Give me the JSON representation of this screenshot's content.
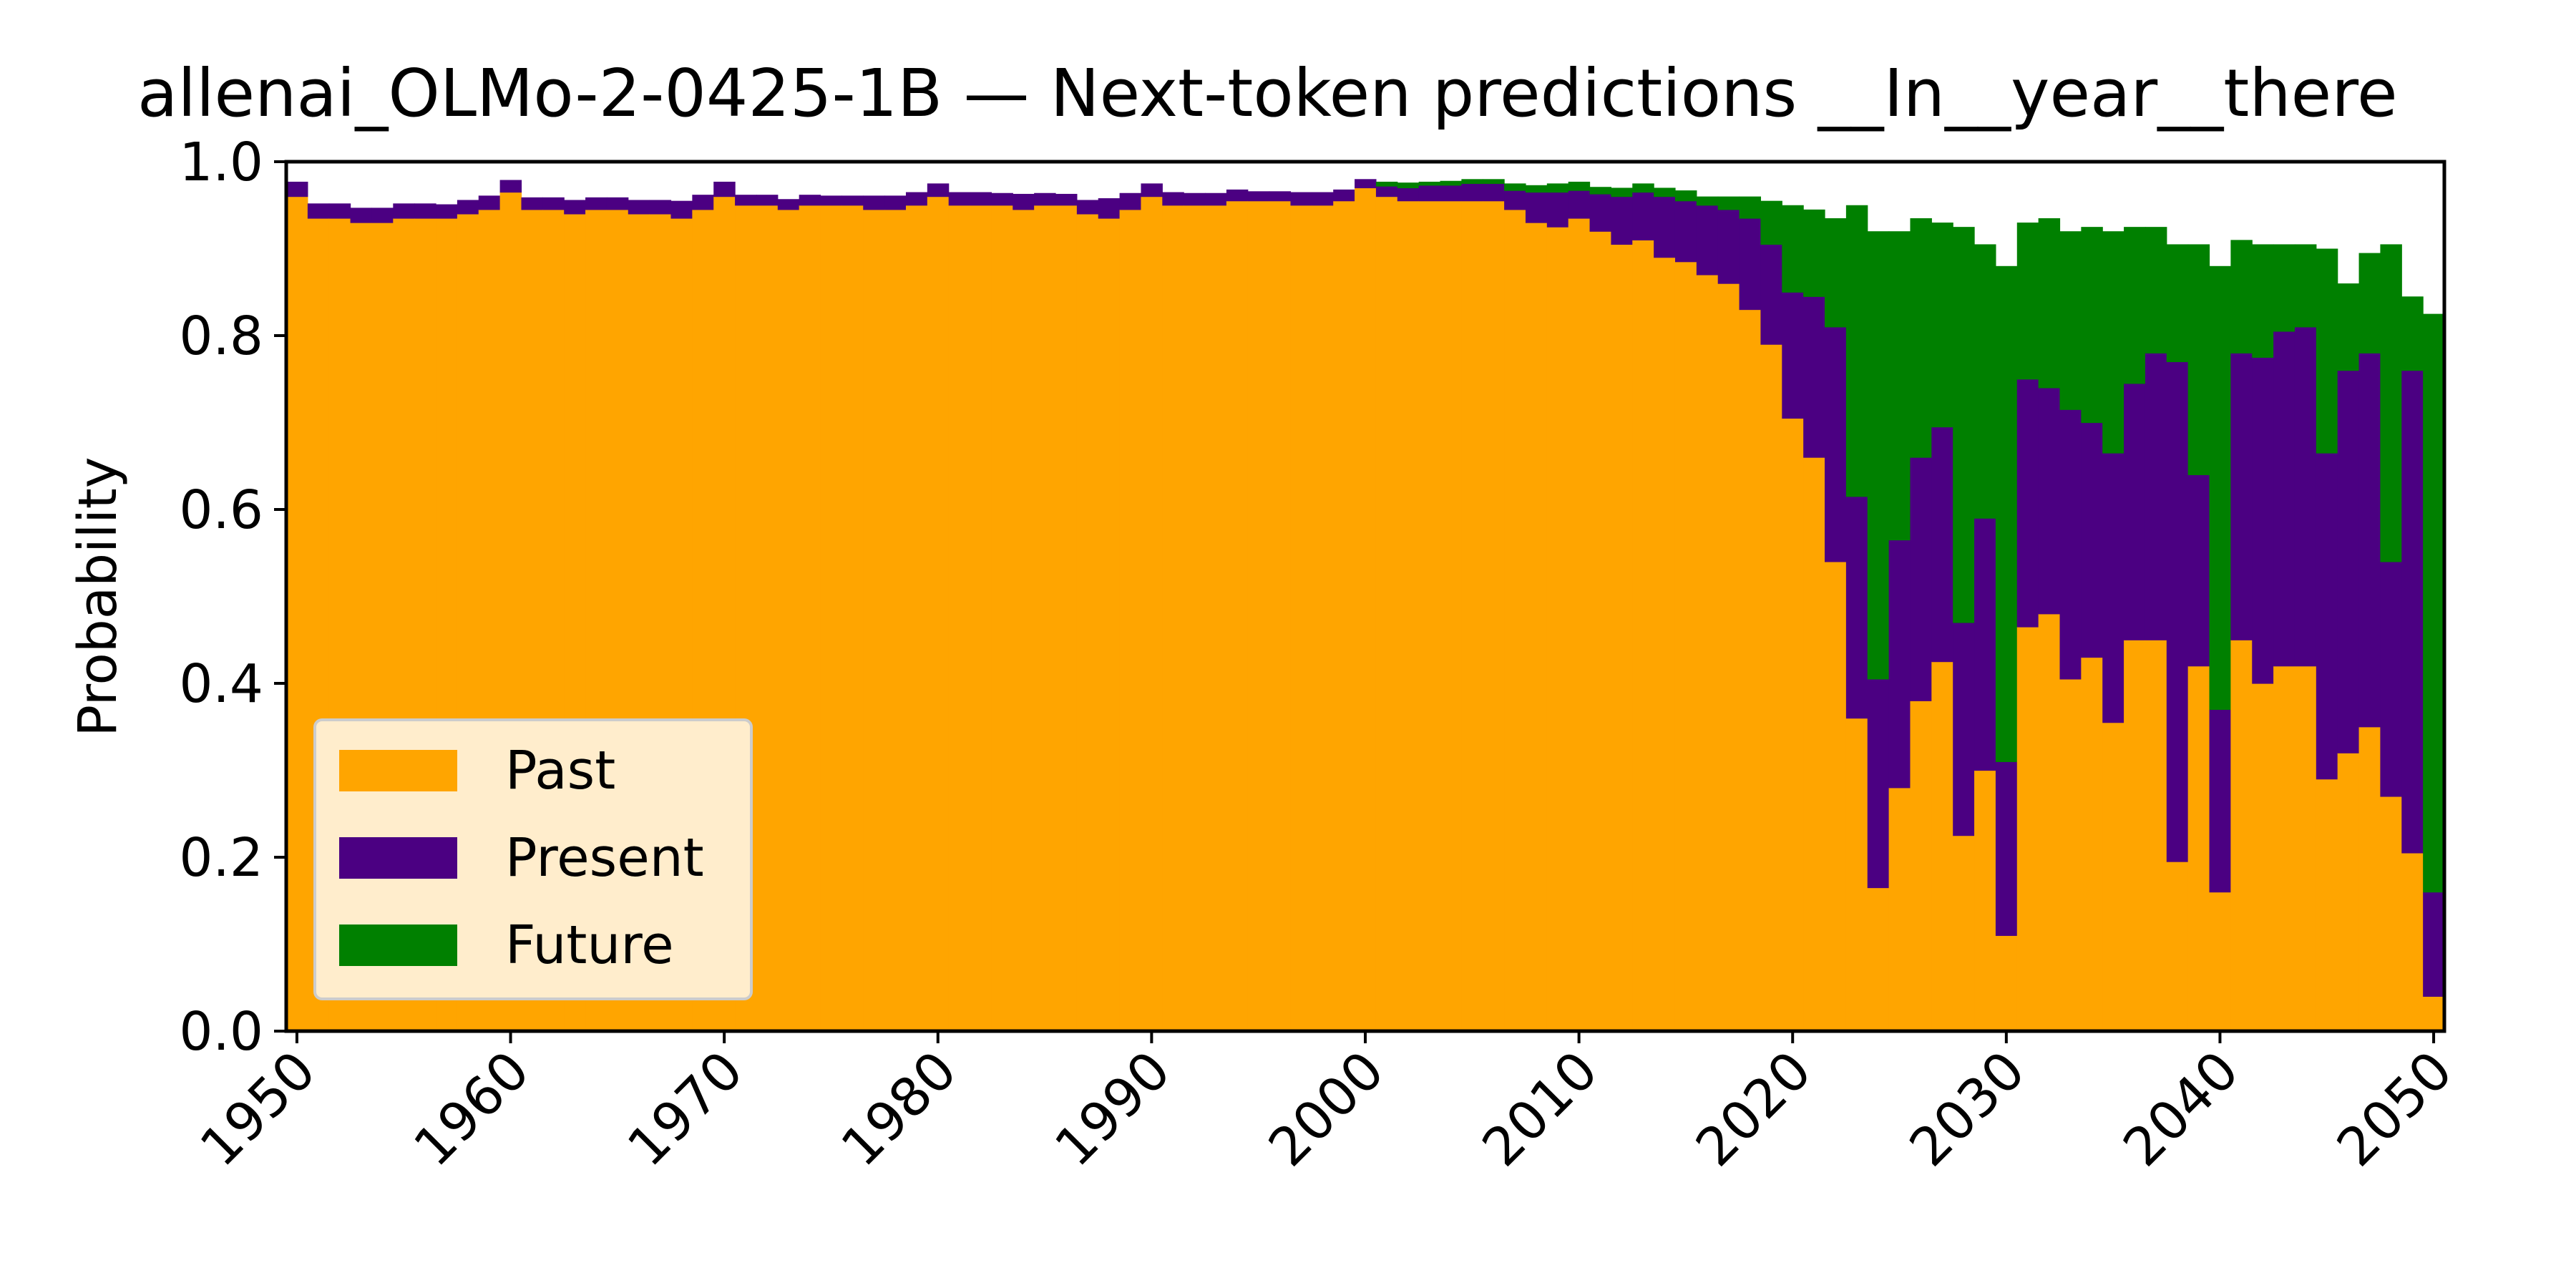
{
  "chart_data": {
    "type": "bar",
    "stacked": true,
    "title": "allenai_OLMo-2-0425-1B — Next-token predictions __In__year__there",
    "xlabel": "",
    "ylabel": "Probability",
    "xlim": [
      1949.5,
      2050.5
    ],
    "ylim": [
      0,
      1
    ],
    "x_ticks": [
      "1950",
      "1960",
      "1970",
      "1980",
      "1990",
      "2000",
      "2010",
      "2020",
      "2030",
      "2040",
      "2050"
    ],
    "y_ticks": [
      "0.0",
      "0.2",
      "0.4",
      "0.6",
      "0.8",
      "1.0"
    ],
    "grid": false,
    "legend_position": "lower-left",
    "x": [
      1950,
      1951,
      1952,
      1953,
      1954,
      1955,
      1956,
      1957,
      1958,
      1959,
      1960,
      1961,
      1962,
      1963,
      1964,
      1965,
      1966,
      1967,
      1968,
      1969,
      1970,
      1971,
      1972,
      1973,
      1974,
      1975,
      1976,
      1977,
      1978,
      1979,
      1980,
      1981,
      1982,
      1983,
      1984,
      1985,
      1986,
      1987,
      1988,
      1989,
      1990,
      1991,
      1992,
      1993,
      1994,
      1995,
      1996,
      1997,
      1998,
      1999,
      2000,
      2001,
      2002,
      2003,
      2004,
      2005,
      2006,
      2007,
      2008,
      2009,
      2010,
      2011,
      2012,
      2013,
      2014,
      2015,
      2016,
      2017,
      2018,
      2019,
      2020,
      2021,
      2022,
      2023,
      2024,
      2025,
      2026,
      2027,
      2028,
      2029,
      2030,
      2031,
      2032,
      2033,
      2034,
      2035,
      2036,
      2037,
      2038,
      2039,
      2040,
      2041,
      2042,
      2043,
      2044,
      2045,
      2046,
      2047,
      2048,
      2049,
      2050
    ],
    "series": [
      {
        "name": "Past",
        "color": "#FFA500",
        "values": [
          0.96,
          0.935,
          0.935,
          0.93,
          0.93,
          0.935,
          0.935,
          0.935,
          0.94,
          0.945,
          0.965,
          0.945,
          0.945,
          0.94,
          0.945,
          0.945,
          0.94,
          0.94,
          0.935,
          0.945,
          0.96,
          0.95,
          0.95,
          0.945,
          0.95,
          0.95,
          0.95,
          0.945,
          0.945,
          0.95,
          0.96,
          0.95,
          0.95,
          0.95,
          0.945,
          0.95,
          0.95,
          0.94,
          0.935,
          0.945,
          0.96,
          0.95,
          0.95,
          0.95,
          0.955,
          0.955,
          0.955,
          0.95,
          0.95,
          0.955,
          0.97,
          0.96,
          0.955,
          0.955,
          0.955,
          0.955,
          0.955,
          0.945,
          0.93,
          0.925,
          0.935,
          0.92,
          0.905,
          0.91,
          0.89,
          0.885,
          0.87,
          0.86,
          0.83,
          0.79,
          0.705,
          0.66,
          0.54,
          0.36,
          0.165,
          0.28,
          0.38,
          0.425,
          0.225,
          0.3,
          0.11,
          0.465,
          0.48,
          0.405,
          0.43,
          0.355,
          0.45,
          0.45,
          0.195,
          0.42,
          0.16,
          0.45,
          0.4,
          0.42,
          0.42,
          0.29,
          0.32,
          0.35,
          0.27,
          0.205,
          0.04
        ]
      },
      {
        "name": "Present",
        "color": "#4B0082",
        "values": [
          0.017,
          0.017,
          0.017,
          0.017,
          0.017,
          0.017,
          0.017,
          0.016,
          0.016,
          0.016,
          0.014,
          0.014,
          0.014,
          0.016,
          0.014,
          0.014,
          0.016,
          0.016,
          0.02,
          0.017,
          0.017,
          0.012,
          0.012,
          0.012,
          0.012,
          0.011,
          0.011,
          0.016,
          0.016,
          0.015,
          0.015,
          0.015,
          0.015,
          0.014,
          0.018,
          0.014,
          0.013,
          0.016,
          0.023,
          0.019,
          0.015,
          0.015,
          0.014,
          0.014,
          0.013,
          0.011,
          0.011,
          0.015,
          0.015,
          0.013,
          0.01,
          0.012,
          0.015,
          0.018,
          0.018,
          0.02,
          0.02,
          0.022,
          0.035,
          0.04,
          0.032,
          0.043,
          0.055,
          0.055,
          0.07,
          0.07,
          0.08,
          0.085,
          0.105,
          0.115,
          0.145,
          0.185,
          0.27,
          0.255,
          0.24,
          0.285,
          0.28,
          0.27,
          0.245,
          0.29,
          0.2,
          0.285,
          0.26,
          0.31,
          0.27,
          0.31,
          0.295,
          0.33,
          0.575,
          0.22,
          0.21,
          0.33,
          0.375,
          0.385,
          0.39,
          0.375,
          0.44,
          0.43,
          0.27,
          0.555,
          0.12
        ]
      },
      {
        "name": "Future",
        "color": "#008000",
        "values": [
          0,
          0,
          0,
          0,
          0,
          0,
          0,
          0,
          0,
          0,
          0,
          0,
          0,
          0,
          0,
          0,
          0,
          0,
          0,
          0,
          0,
          0,
          0,
          0,
          0,
          0,
          0,
          0,
          0,
          0,
          0,
          0,
          0,
          0,
          0,
          0,
          0,
          0,
          0,
          0,
          0,
          0,
          0,
          0,
          0,
          0,
          0,
          0,
          0,
          0,
          0,
          0.005,
          0.006,
          0.004,
          0.005,
          0.005,
          0.005,
          0.008,
          0.008,
          0.01,
          0.01,
          0.008,
          0.01,
          0.01,
          0.01,
          0.012,
          0.01,
          0.015,
          0.025,
          0.05,
          0.1,
          0.1,
          0.125,
          0.335,
          0.515,
          0.355,
          0.275,
          0.235,
          0.455,
          0.315,
          0.57,
          0.18,
          0.195,
          0.205,
          0.225,
          0.255,
          0.18,
          0.145,
          0.135,
          0.265,
          0.51,
          0.13,
          0.13,
          0.1,
          0.095,
          0.235,
          0.1,
          0.115,
          0.365,
          0.085,
          0.665
        ]
      }
    ]
  }
}
